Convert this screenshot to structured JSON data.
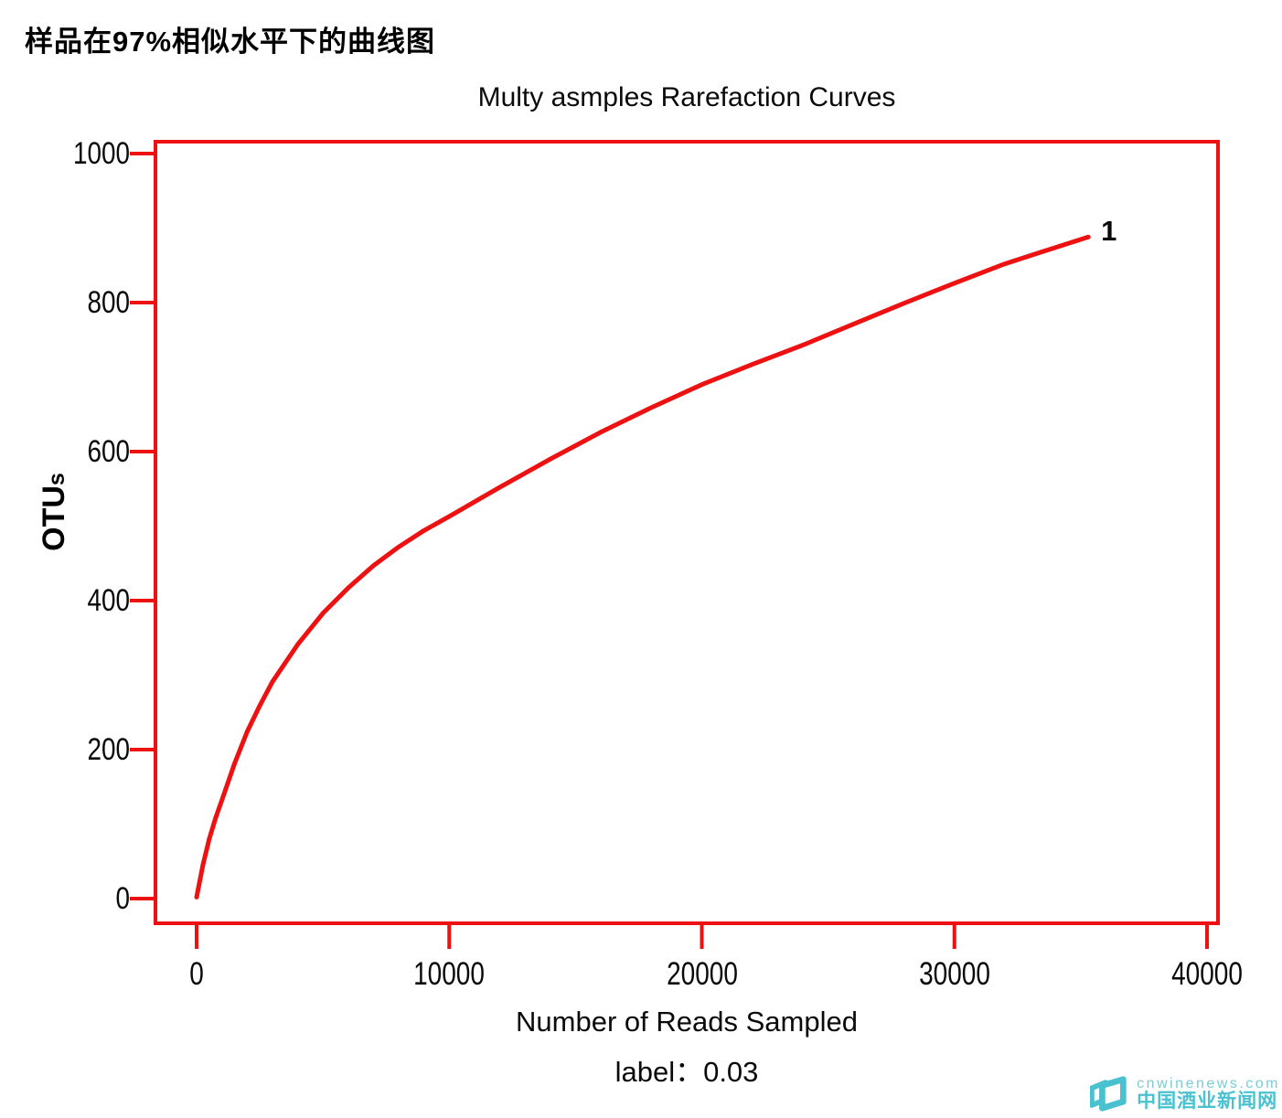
{
  "page_title": "样品在97%相似水平下的曲线图",
  "colors": {
    "accent_red": "#ee1111",
    "text": "#0a0a0a",
    "watermark_teal": "#4ac1cf"
  },
  "chart_data": {
    "type": "line",
    "title": "Multy asmples Rarefaction Curves",
    "xlabel": "Number of Reads Sampled",
    "xlabel_line2": "label：0.03",
    "ylabel": "OTUs",
    "ylabel_parts": [
      "OTU",
      "s"
    ],
    "xlim": [
      0,
      40000
    ],
    "ylim": [
      0,
      1000
    ],
    "x_ticks": [
      0,
      10000,
      20000,
      30000,
      40000
    ],
    "y_ticks": [
      0,
      200,
      400,
      600,
      800,
      1000
    ],
    "grid": false,
    "legend": "none",
    "frame": "red box frame with outward red ticks",
    "series": [
      {
        "name": "1",
        "color": "#ee1111",
        "x": [
          0,
          250,
          500,
          750,
          1000,
          1500,
          2000,
          2500,
          3000,
          4000,
          5000,
          6000,
          7000,
          8000,
          9000,
          10000,
          12000,
          14000,
          16000,
          18000,
          20000,
          22000,
          24000,
          26000,
          28000,
          30000,
          32000,
          34000,
          35300
        ],
        "y": [
          2,
          45,
          80,
          108,
          132,
          181,
          224,
          259,
          291,
          341,
          383,
          417,
          447,
          472,
          494,
          513,
          552,
          590,
          626,
          659,
          690,
          717,
          743,
          771,
          799,
          826,
          852,
          874,
          888
        ]
      }
    ]
  },
  "watermark": {
    "line1": "cnwinenews.com",
    "line2": "中国酒业新闻网"
  }
}
